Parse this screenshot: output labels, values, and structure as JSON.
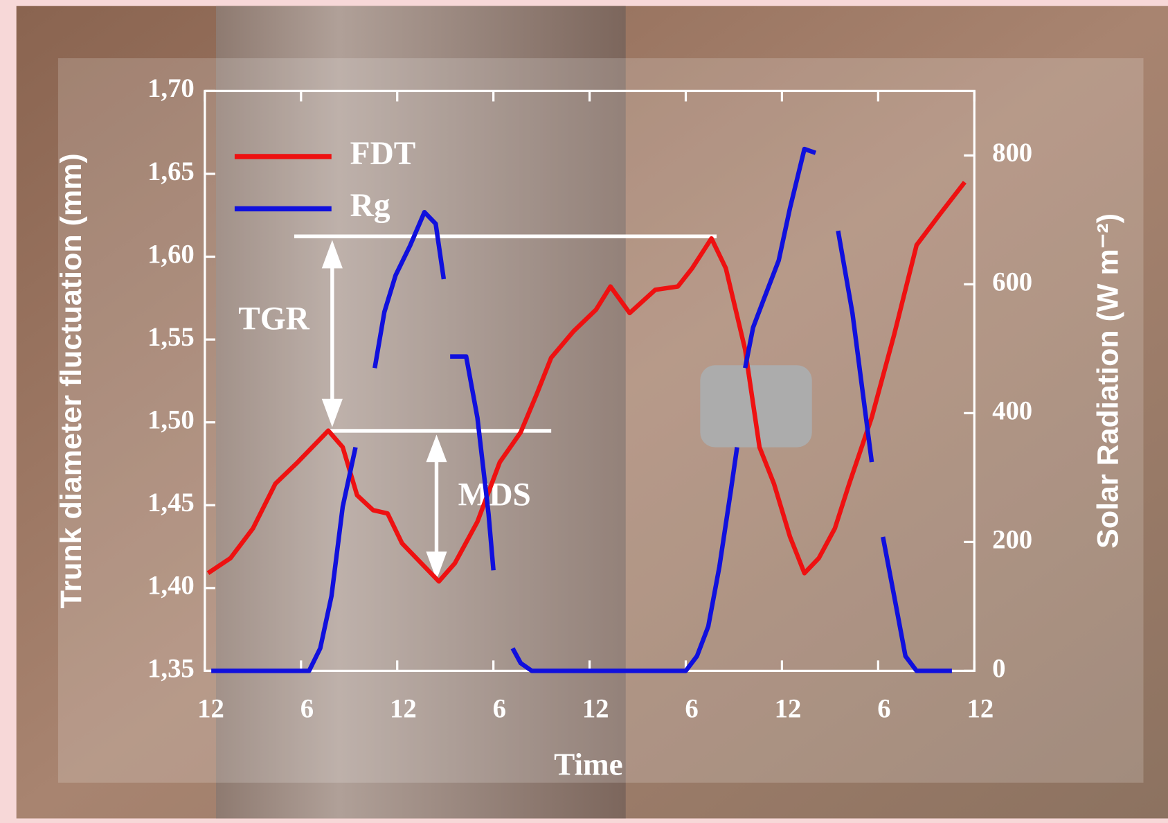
{
  "chart_data": {
    "type": "line",
    "y_label": "Trunk diameter fluctuation (mm)",
    "y2_label": "Solar Radiation (W m⁻²)",
    "x_label": "Time",
    "annotations": [
      "TGR",
      "MDS"
    ],
    "legend": "upper left",
    "xlim": [
      0,
      48
    ],
    "xticks": [
      {
        "value": 0,
        "label": "12"
      },
      {
        "value": 6,
        "label": "6"
      },
      {
        "value": 12,
        "label": "12"
      },
      {
        "value": 18,
        "label": "6"
      },
      {
        "value": 24,
        "label": "12"
      },
      {
        "value": 30,
        "label": "6"
      },
      {
        "value": 36,
        "label": "12"
      },
      {
        "value": 42,
        "label": "6"
      },
      {
        "value": 48,
        "label": "12"
      }
    ],
    "ylim": [
      1.35,
      1.7
    ],
    "yticks": [
      {
        "value": 1.35,
        "label": "1,35"
      },
      {
        "value": 1.4,
        "label": "1,40"
      },
      {
        "value": 1.45,
        "label": "1,45"
      },
      {
        "value": 1.5,
        "label": "1,50"
      },
      {
        "value": 1.55,
        "label": "1,55"
      },
      {
        "value": 1.6,
        "label": "1,60"
      },
      {
        "value": 1.65,
        "label": "1,65"
      },
      {
        "value": 1.7,
        "label": "1,70"
      }
    ],
    "y2lim": [
      0,
      900
    ],
    "y2ticks": [
      0,
      200,
      400,
      600,
      800
    ],
    "series": [
      {
        "name": "FDT",
        "color": "#ee1111",
        "axis": "y",
        "x": [
          0.2,
          1.6,
          3.0,
          4.4,
          5.8,
          7.7,
          8.6,
          9.5,
          10.5,
          11.4,
          12.3,
          13.7,
          14.6,
          15.6,
          17.0,
          18.4,
          19.7,
          20.7,
          21.6,
          23.0,
          24.4,
          25.3,
          26.5,
          28.1,
          29.5,
          30.4,
          31.6,
          32.5,
          33.7,
          34.6,
          35.5,
          36.5,
          37.4,
          38.3,
          39.3,
          40.2,
          41.6,
          43.0,
          44.4,
          45.8,
          47.4
        ],
        "values": [
          1.409,
          1.418,
          1.436,
          1.463,
          1.476,
          1.495,
          1.485,
          1.456,
          1.447,
          1.445,
          1.427,
          1.413,
          1.404,
          1.415,
          1.44,
          1.476,
          1.494,
          1.517,
          1.539,
          1.555,
          1.568,
          1.582,
          1.566,
          1.58,
          1.582,
          1.593,
          1.611,
          1.593,
          1.544,
          1.485,
          1.463,
          1.431,
          1.409,
          1.418,
          1.436,
          1.463,
          1.503,
          1.553,
          1.607,
          1.625,
          1.645
        ]
      },
      {
        "name": "Rg",
        "color": "#1010dd",
        "axis": "y2",
        "x": [
          0.4,
          6.5,
          7.2,
          7.9,
          8.6,
          9.4,
          null,
          10.6,
          11.2,
          11.9,
          12.8,
          13.7,
          14.4,
          14.9,
          null,
          15.3,
          16.3,
          17.0,
          17.7,
          18.0,
          null,
          19.2,
          19.7,
          20.4,
          30.0,
          30.7,
          31.4,
          32.1,
          32.8,
          33.2,
          null,
          33.7,
          34.2,
          34.9,
          35.8,
          36.5,
          37.4,
          38.1,
          null,
          39.5,
          40.4,
          41.6,
          null,
          42.3,
          43.0,
          43.7,
          44.4,
          46.6
        ],
        "values": [
          0,
          0,
          35,
          116,
          255,
          347,
          null,
          470,
          557,
          614,
          660,
          712,
          694,
          608,
          null,
          488,
          488,
          393,
          243,
          156,
          null,
          35,
          12,
          0,
          0,
          23,
          69,
          162,
          278,
          347,
          null,
          470,
          533,
          579,
          637,
          718,
          810,
          804,
          null,
          683,
          555,
          324,
          null,
          208,
          116,
          23,
          0,
          0
        ]
      }
    ]
  }
}
